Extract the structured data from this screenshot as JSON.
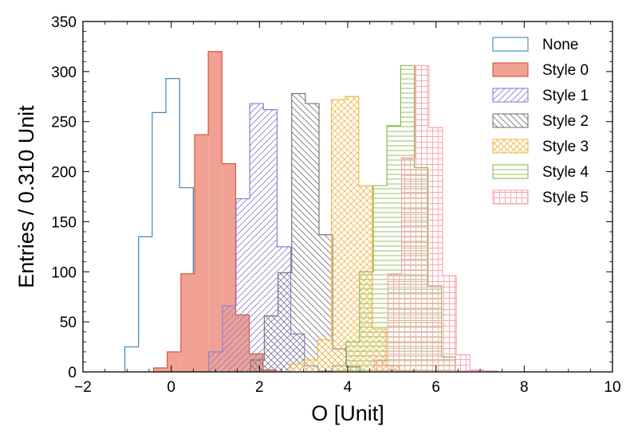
{
  "chart_data": {
    "type": "bar",
    "histogram": true,
    "bin_width": 0.31,
    "xlabel": "O [Unit]",
    "ylabel": "Entries / 0.310 Unit",
    "xlim": [
      -2,
      10
    ],
    "ylim": [
      0,
      350
    ],
    "xticks": [
      -2,
      0,
      2,
      4,
      6,
      8,
      10
    ],
    "yticks": [
      0,
      50,
      100,
      150,
      200,
      250,
      300,
      350
    ],
    "grid": false,
    "legend_position": "top-right",
    "series": [
      {
        "name": "None",
        "style": "outline",
        "color": "#3a87c0",
        "bin_start": -1.05,
        "values": [
          25,
          135,
          259,
          293,
          184,
          57,
          13,
          2
        ]
      },
      {
        "name": "Style 0",
        "style": "solid",
        "color": "#d5573b",
        "fill": "#f0a193",
        "bin_start": -0.4,
        "values": [
          4,
          20,
          98,
          237,
          320,
          208,
          57,
          18,
          2
        ]
      },
      {
        "name": "Style 1",
        "style": "hatch-diagonal",
        "color": "#8c7fd0",
        "bin_start": 0.85,
        "values": [
          20,
          66,
          173,
          268,
          262,
          125,
          38,
          6,
          1
        ]
      },
      {
        "name": "Style 2",
        "style": "hatch-backdiagonal",
        "color": "#777777",
        "bin_start": 1.8,
        "values": [
          12,
          56,
          99,
          278,
          268,
          137,
          23,
          5
        ]
      },
      {
        "name": "Style 3",
        "style": "hatch-cross",
        "color": "#f2b84b",
        "bin_start": 2.7,
        "values": [
          8,
          12,
          32,
          272,
          275,
          186,
          43,
          6,
          1
        ]
      },
      {
        "name": "Style 4",
        "style": "hatch-horizontal",
        "color": "#8abb4c",
        "bin_start": 3.65,
        "values": [
          6,
          30,
          100,
          186,
          246,
          306,
          204,
          86,
          15
        ]
      },
      {
        "name": "Style 5",
        "style": "hatch-grid",
        "color": "#f9a4b2",
        "bin_start": 4.6,
        "values": [
          12,
          98,
          214,
          306,
          244,
          96,
          17,
          2,
          1
        ]
      }
    ]
  }
}
